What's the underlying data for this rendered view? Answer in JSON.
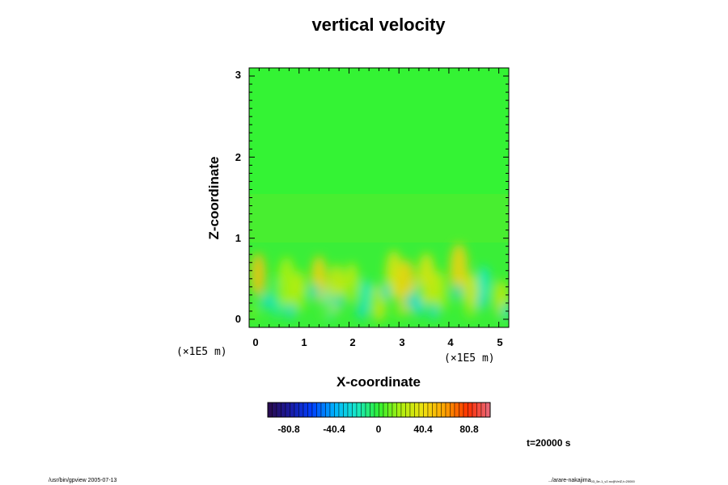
{
  "chart_data": {
    "type": "heatmap",
    "title": "vertical velocity",
    "xlabel": "X-coordinate",
    "ylabel": "Z-coordinate",
    "x_scale_note": "(×1E5 m)",
    "z_scale_note": "(×1E5 m)",
    "xlim": [
      0,
      5.2
    ],
    "ylim": [
      -0.1,
      3.1
    ],
    "x_ticks": [
      "0",
      "1",
      "2",
      "3",
      "4",
      "5"
    ],
    "y_ticks": [
      "0",
      "1",
      "2",
      "3"
    ],
    "colorbar": {
      "range": [
        -101,
        101
      ],
      "tick_labels": [
        "-80.8",
        "-40.4",
        "0",
        "40.4",
        "80.8"
      ],
      "colors": [
        "#2a0a4a",
        "#1a1aa0",
        "#0040ff",
        "#00b4ff",
        "#18e8c8",
        "#30f030",
        "#b0f010",
        "#f0e010",
        "#ffa000",
        "#ff3000",
        "#e86a80"
      ]
    },
    "background_level": 0,
    "features": [
      {
        "x": 0.18,
        "z": 0.55,
        "w": 14,
        "level": 50
      },
      {
        "x": 0.55,
        "z": 0.25,
        "w": -10,
        "level": -15
      },
      {
        "x": 0.75,
        "z": 0.45,
        "w": 20,
        "level": 20
      },
      {
        "x": 1.0,
        "z": 0.35,
        "w": 12,
        "level": 25
      },
      {
        "x": 1.4,
        "z": 0.5,
        "w": 16,
        "level": 45
      },
      {
        "x": 1.6,
        "z": 0.2,
        "w": -8,
        "level": -20
      },
      {
        "x": 1.75,
        "z": 0.38,
        "w": 18,
        "level": 30
      },
      {
        "x": 2.05,
        "z": 0.45,
        "w": 12,
        "level": 25
      },
      {
        "x": 2.35,
        "z": 0.3,
        "w": -6,
        "level": -20
      },
      {
        "x": 2.6,
        "z": 0.2,
        "w": 10,
        "level": 30
      },
      {
        "x": 2.9,
        "z": 0.55,
        "w": 18,
        "level": 35
      },
      {
        "x": 3.15,
        "z": 0.4,
        "w": 22,
        "level": 45
      },
      {
        "x": 3.4,
        "z": 0.25,
        "w": -8,
        "level": -25
      },
      {
        "x": 3.55,
        "z": 0.5,
        "w": 20,
        "level": 35
      },
      {
        "x": 3.8,
        "z": 0.35,
        "w": 12,
        "level": 25
      },
      {
        "x": 4.2,
        "z": 0.6,
        "w": 22,
        "level": 45
      },
      {
        "x": 4.45,
        "z": 0.3,
        "w": 14,
        "level": 30
      },
      {
        "x": 4.7,
        "z": 0.45,
        "w": -8,
        "level": -20
      },
      {
        "x": 5.05,
        "z": 0.25,
        "w": 10,
        "level": 30
      }
    ]
  },
  "footer": {
    "left": "/usr/bin/gpview 2005-07-13",
    "right": "../arare-nakajima",
    "right_sub": "03_5e-1_v2.nc@VelZ,t=20000"
  },
  "time_label": "t=20000 s"
}
